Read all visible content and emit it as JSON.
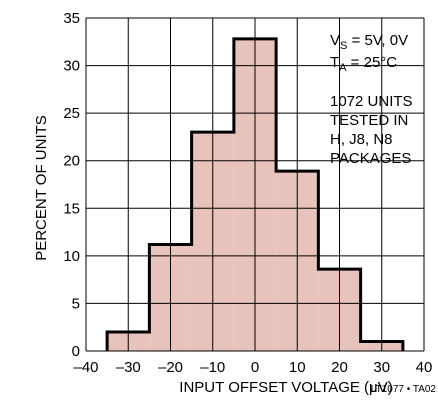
{
  "chart_data": {
    "type": "histogram",
    "xlabel": "INPUT OFFSET VOLTAGE (μV)",
    "ylabel": "PERCENT OF UNITS",
    "xlim": [
      -40,
      40
    ],
    "ylim": [
      0,
      35
    ],
    "xticks": [
      -40,
      -30,
      -20,
      -10,
      0,
      10,
      20,
      30,
      40
    ],
    "xtick_labels": [
      "–40",
      "–30",
      "–20",
      "–10",
      "0",
      "10",
      "20",
      "30",
      "40"
    ],
    "yticks": [
      0,
      5,
      10,
      15,
      20,
      25,
      30,
      35
    ],
    "ytick_labels": [
      "0",
      "5",
      "10",
      "15",
      "20",
      "25",
      "30",
      "35"
    ],
    "grid": true,
    "bins": [
      {
        "x0": -35,
        "x1": -25,
        "value": 2
      },
      {
        "x0": -25,
        "x1": -15,
        "value": 11.2
      },
      {
        "x0": -15,
        "x1": -5,
        "value": 23
      },
      {
        "x0": -5,
        "x1": 5,
        "value": 32.8
      },
      {
        "x0": 5,
        "x1": 15,
        "value": 18.9
      },
      {
        "x0": 15,
        "x1": 25,
        "value": 8.6
      },
      {
        "x0": 25,
        "x1": 35,
        "value": 1
      }
    ],
    "fill_color": "#e8c3bb",
    "outline_color": "#000000",
    "annotations": {
      "supply": {
        "prefix": "V",
        "sub": "S",
        "rest": " = 5V, 0V"
      },
      "temp": {
        "prefix": "T",
        "sub": "A",
        "rest": " = 25°C"
      },
      "units_lines": [
        "1072 UNITS",
        "TESTED IN",
        "H, J8, N8",
        "PACKAGES"
      ]
    },
    "code": "LT1077 • TA02"
  }
}
